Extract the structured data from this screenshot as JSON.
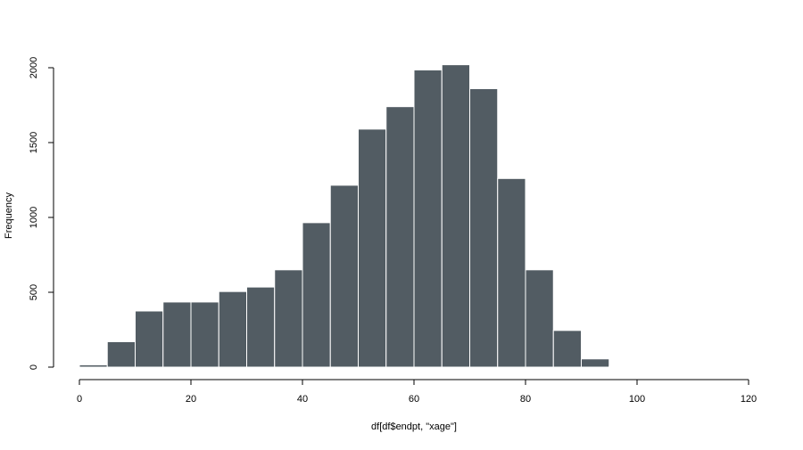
{
  "chart_data": {
    "type": "histogram",
    "title": "",
    "xlabel": "df[df$endpt, \"xage\"]",
    "ylabel": "Frequency",
    "xlim": [
      0,
      120
    ],
    "ylim": [
      0,
      2000
    ],
    "x_ticks": [
      0,
      20,
      40,
      60,
      80,
      100,
      120
    ],
    "y_ticks": [
      0,
      500,
      1000,
      1500,
      2000
    ],
    "bin_width": 5,
    "bins": [
      {
        "start": 0,
        "end": 5,
        "count": 15
      },
      {
        "start": 5,
        "end": 10,
        "count": 170
      },
      {
        "start": 10,
        "end": 15,
        "count": 375
      },
      {
        "start": 15,
        "end": 20,
        "count": 435
      },
      {
        "start": 20,
        "end": 25,
        "count": 435
      },
      {
        "start": 25,
        "end": 30,
        "count": 505
      },
      {
        "start": 30,
        "end": 35,
        "count": 535
      },
      {
        "start": 35,
        "end": 40,
        "count": 650
      },
      {
        "start": 40,
        "end": 45,
        "count": 965
      },
      {
        "start": 45,
        "end": 50,
        "count": 1215
      },
      {
        "start": 50,
        "end": 55,
        "count": 1590
      },
      {
        "start": 55,
        "end": 60,
        "count": 1740
      },
      {
        "start": 60,
        "end": 65,
        "count": 1985
      },
      {
        "start": 65,
        "end": 70,
        "count": 2020
      },
      {
        "start": 70,
        "end": 75,
        "count": 1860
      },
      {
        "start": 75,
        "end": 80,
        "count": 1260
      },
      {
        "start": 80,
        "end": 85,
        "count": 650
      },
      {
        "start": 85,
        "end": 90,
        "count": 245
      },
      {
        "start": 90,
        "end": 95,
        "count": 55
      },
      {
        "start": 95,
        "end": 100,
        "count": 5
      }
    ],
    "bar_color": "#525c63",
    "bar_border_color": "#ffffff",
    "grid": false,
    "legend": "none"
  }
}
